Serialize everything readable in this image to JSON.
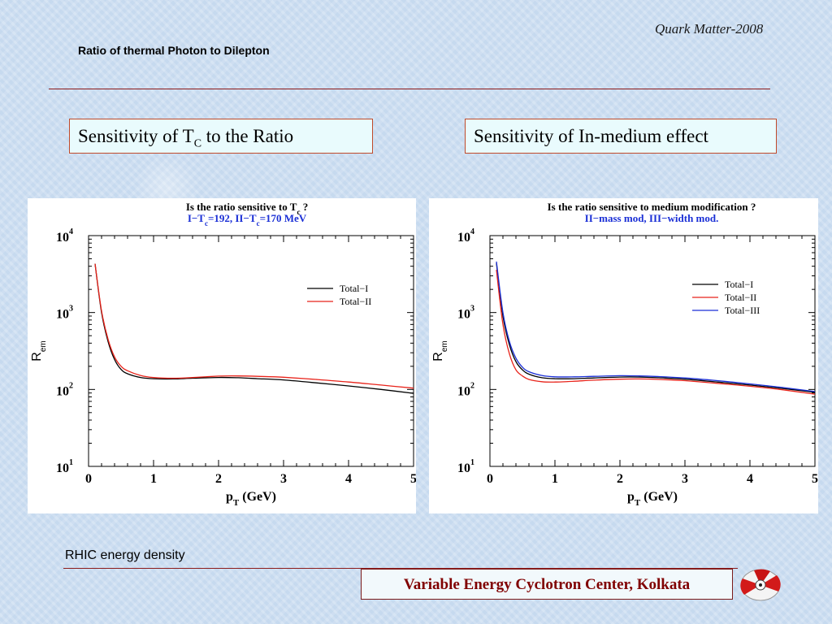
{
  "header": {
    "conference": "Quark Matter-2008",
    "title": "Ratio of thermal Photon to Dilepton"
  },
  "boxes": {
    "left": {
      "pre": "Sensitivity of  T",
      "sub": "C",
      "post": "  to the Ratio"
    },
    "right": {
      "text": "Sensitivity of In-medium effect"
    }
  },
  "footer": {
    "note": "RHIC energy density",
    "institute": "Variable Energy Cyclotron Center, Kolkata"
  },
  "colors": {
    "total1": "#000000",
    "total2": "#e8231a",
    "total3": "#1a2fd6",
    "subtitle": "#1a2fd6"
  },
  "chart_data": [
    {
      "type": "line",
      "title": "Is the ratio sensitive to T",
      "title_sub": "c",
      "title_end": " ?",
      "subtitle_parts": [
        "I−T",
        "c",
        "=192,  II−T",
        "c",
        "=170 MeV"
      ],
      "xlabel_main": "p",
      "xlabel_sub": "T",
      "xlabel_end": " (GeV)",
      "ylabel_main": "R",
      "ylabel_sub": "em",
      "xlim": [
        0,
        5
      ],
      "ylim": [
        10,
        10000
      ],
      "yscale": "log",
      "xticks": [
        "0",
        "1",
        "2",
        "3",
        "4",
        "5"
      ],
      "yticks": [
        {
          "base": "10",
          "exp": "1"
        },
        {
          "base": "10",
          "exp": "2"
        },
        {
          "base": "10",
          "exp": "3"
        },
        {
          "base": "10",
          "exp": "4"
        }
      ],
      "series": [
        {
          "name": "Total−I",
          "color_key": "total1",
          "x": [
            0.1,
            0.2,
            0.3,
            0.4,
            0.5,
            0.6,
            0.8,
            1.0,
            1.3,
            1.6,
            2.0,
            2.3,
            2.6,
            3.0,
            3.5,
            4.0,
            4.5,
            5.0
          ],
          "y": [
            4300,
            1000,
            420,
            245,
            182,
            160,
            143,
            138,
            137,
            140,
            143,
            142,
            138,
            133,
            122,
            111,
            100,
            89
          ]
        },
        {
          "name": "Total−II",
          "color_key": "total2",
          "x": [
            0.1,
            0.2,
            0.3,
            0.4,
            0.5,
            0.6,
            0.8,
            1.0,
            1.3,
            1.6,
            2.0,
            2.3,
            2.6,
            3.0,
            3.5,
            4.0,
            4.5,
            5.0
          ],
          "y": [
            4300,
            1050,
            450,
            265,
            200,
            175,
            152,
            143,
            140,
            143,
            149,
            150,
            148,
            144,
            135,
            125,
            114,
            104
          ]
        }
      ]
    },
    {
      "type": "line",
      "title": "Is the ratio sensitive to medium modification ?",
      "subtitle_parts": [
        "II−mass mod, III−width mod."
      ],
      "xlabel_main": "p",
      "xlabel_sub": "T",
      "xlabel_end": " (GeV)",
      "ylabel_main": "R",
      "ylabel_sub": "em",
      "xlim": [
        0,
        5
      ],
      "ylim": [
        10,
        10000
      ],
      "yscale": "log",
      "xticks": [
        "0",
        "1",
        "2",
        "3",
        "4",
        "5"
      ],
      "yticks": [
        {
          "base": "10",
          "exp": "1"
        },
        {
          "base": "10",
          "exp": "2"
        },
        {
          "base": "10",
          "exp": "3"
        },
        {
          "base": "10",
          "exp": "4"
        }
      ],
      "series": [
        {
          "name": "Total−I",
          "color_key": "total1",
          "x": [
            0.1,
            0.2,
            0.3,
            0.4,
            0.5,
            0.6,
            0.8,
            1.0,
            1.3,
            1.6,
            2.0,
            2.3,
            2.6,
            3.0,
            3.5,
            4.0,
            4.5,
            5.0
          ],
          "y": [
            4400,
            900,
            380,
            230,
            180,
            158,
            142,
            138,
            138,
            141,
            145,
            145,
            142,
            136,
            125,
            114,
            103,
            92
          ]
        },
        {
          "name": "Total−II",
          "color_key": "total2",
          "x": [
            0.1,
            0.2,
            0.3,
            0.4,
            0.5,
            0.6,
            0.8,
            1.0,
            1.3,
            1.6,
            2.0,
            2.3,
            2.6,
            3.0,
            3.5,
            4.0,
            4.5,
            5.0
          ],
          "y": [
            3600,
            700,
            290,
            180,
            150,
            135,
            126,
            125,
            128,
            132,
            136,
            137,
            135,
            130,
            120,
            110,
            99,
            87
          ]
        },
        {
          "name": "Total−III",
          "color_key": "total3",
          "x": [
            0.1,
            0.2,
            0.3,
            0.4,
            0.5,
            0.6,
            0.8,
            1.0,
            1.3,
            1.6,
            2.0,
            2.3,
            2.6,
            3.0,
            3.5,
            4.0,
            4.5,
            5.0
          ],
          "y": [
            4600,
            1000,
            420,
            255,
            195,
            170,
            152,
            146,
            146,
            148,
            151,
            150,
            147,
            141,
            130,
            118,
            106,
            94
          ]
        }
      ]
    }
  ]
}
